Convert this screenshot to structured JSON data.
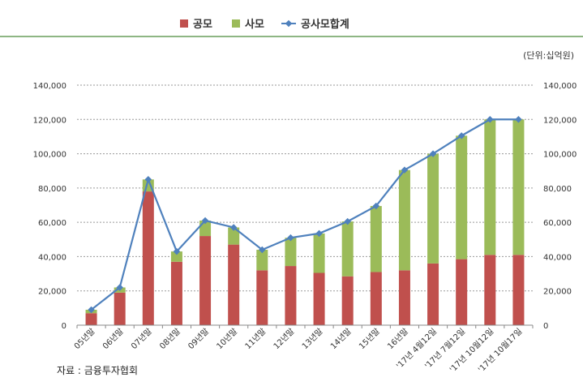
{
  "chart_data": {
    "type": "bar",
    "stacked": true,
    "unit_label": "(단위:십억원)",
    "source": "자료 : 금융투자협회",
    "categories": [
      "05년말",
      "06년말",
      "07년말",
      "08년말",
      "09년말",
      "10년말",
      "11년말",
      "12년말",
      "13년말",
      "14년말",
      "15년말",
      "16년말",
      "'17년 4월12일",
      "'17년 7월12일",
      "'17년 10월12일",
      "'17년 10월17일"
    ],
    "series": [
      {
        "name": "공모",
        "type": "bar",
        "color": "#c0504d",
        "values": [
          7000,
          19000,
          78000,
          37000,
          52000,
          47000,
          32000,
          34500,
          30500,
          28500,
          31000,
          32000,
          36000,
          38500,
          41000,
          41000
        ]
      },
      {
        "name": "사모",
        "type": "bar",
        "color": "#9bbb59",
        "values": [
          2000,
          3000,
          7000,
          6000,
          9000,
          10000,
          12000,
          16500,
          23000,
          32000,
          38500,
          58500,
          64000,
          72000,
          79000,
          79000
        ]
      },
      {
        "name": "공사모합계",
        "type": "line",
        "color": "#4f81bd",
        "values": [
          9000,
          22000,
          85000,
          43000,
          61000,
          57000,
          44000,
          51000,
          53500,
          60500,
          69500,
          90500,
          100000,
          110500,
          120000,
          120000
        ]
      }
    ],
    "ylim": [
      0,
      140000
    ],
    "yticks": [
      "0",
      "20,000",
      "40,000",
      "60,000",
      "80,000",
      "100,000",
      "120,000",
      "140,000"
    ],
    "grid": true,
    "legend": "top"
  }
}
